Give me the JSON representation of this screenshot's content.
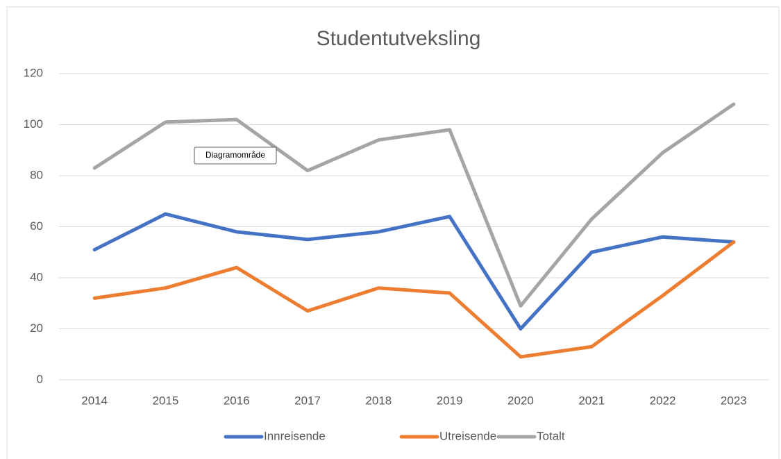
{
  "chart_data": {
    "type": "line",
    "title": "Studentutveksling",
    "categories": [
      "2014",
      "2015",
      "2016",
      "2017",
      "2018",
      "2019",
      "2020",
      "2021",
      "2022",
      "2023"
    ],
    "series": [
      {
        "name": "Innreisende",
        "color": "#4472c4",
        "values": [
          51,
          65,
          58,
          55,
          58,
          64,
          20,
          50,
          56,
          54
        ]
      },
      {
        "name": "Utreisende",
        "color": "#ed7d31",
        "values": [
          32,
          36,
          44,
          27,
          36,
          34,
          9,
          13,
          33,
          54
        ]
      },
      {
        "name": "Totalt",
        "color": "#a5a5a5",
        "values": [
          83,
          101,
          102,
          82,
          94,
          98,
          29,
          63,
          89,
          108
        ]
      }
    ],
    "ylim": [
      0,
      120
    ],
    "yticks": [
      0,
      20,
      40,
      60,
      80,
      100,
      120
    ],
    "grid": true,
    "legend": "bottom",
    "tooltip": "Diagramområde"
  }
}
